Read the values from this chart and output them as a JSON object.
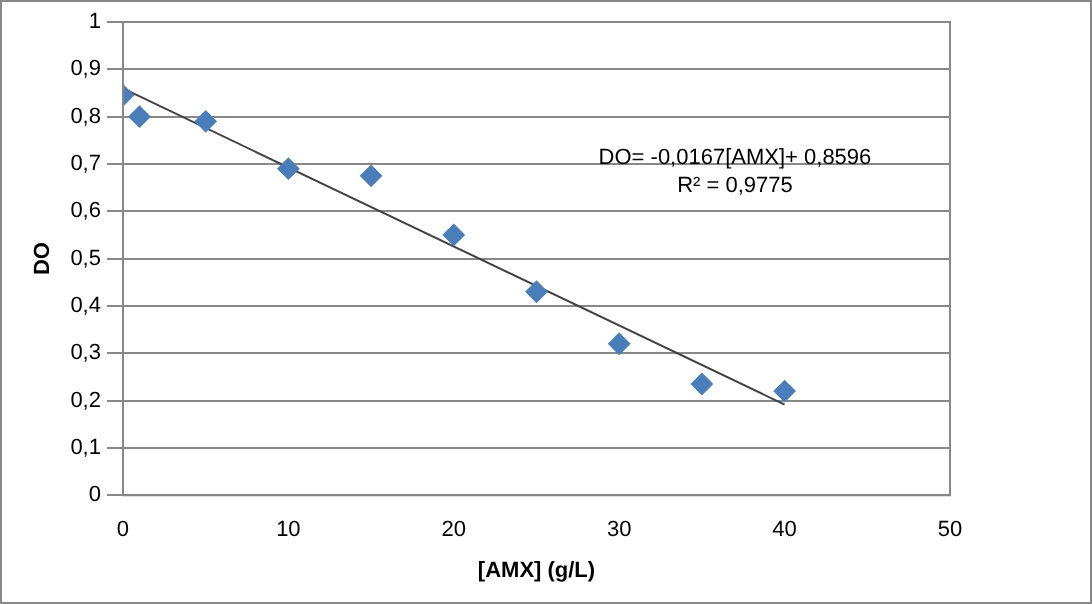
{
  "chart_data": {
    "type": "scatter",
    "xlabel": "[AMX] (g/L)",
    "ylabel": "DO",
    "x": [
      0,
      1,
      5,
      10,
      15,
      20,
      25,
      30,
      35,
      40
    ],
    "series": [
      {
        "color": "#4a7ebb",
        "marker": "diamond",
        "values": [
          0.845,
          0.8,
          0.79,
          0.69,
          0.675,
          0.55,
          0.43,
          0.32,
          0.235,
          0.22
        ]
      },
      {
        "type": "line",
        "color": "#404040",
        "marker": "none",
        "x": [
          0,
          40
        ],
        "values": [
          0.8596,
          0.1916
        ]
      }
    ],
    "xlim": [
      0,
      50
    ],
    "xticks": [
      0,
      10,
      20,
      30,
      40,
      50
    ],
    "ylim": [
      0,
      1
    ],
    "yticks": [
      0,
      {
        "value": 0.1,
        "label": "0,1"
      },
      {
        "value": 0.2,
        "label": "0,2"
      },
      {
        "value": 0.3,
        "label": "0,3"
      },
      {
        "value": 0.4,
        "label": "0,4"
      },
      {
        "value": 0.5,
        "label": "0,5"
      },
      {
        "value": 0.6,
        "label": "0,6"
      },
      {
        "value": 0.7,
        "label": "0,7"
      },
      {
        "value": 0.8,
        "label": "0,8"
      },
      {
        "value": 0.9,
        "label": "0,9"
      },
      1
    ],
    "grid": "y",
    "legend": false,
    "annotations": [
      "DO= -0,0167[AMX]+ 0,8596",
      "R² = 0,9775"
    ]
  }
}
